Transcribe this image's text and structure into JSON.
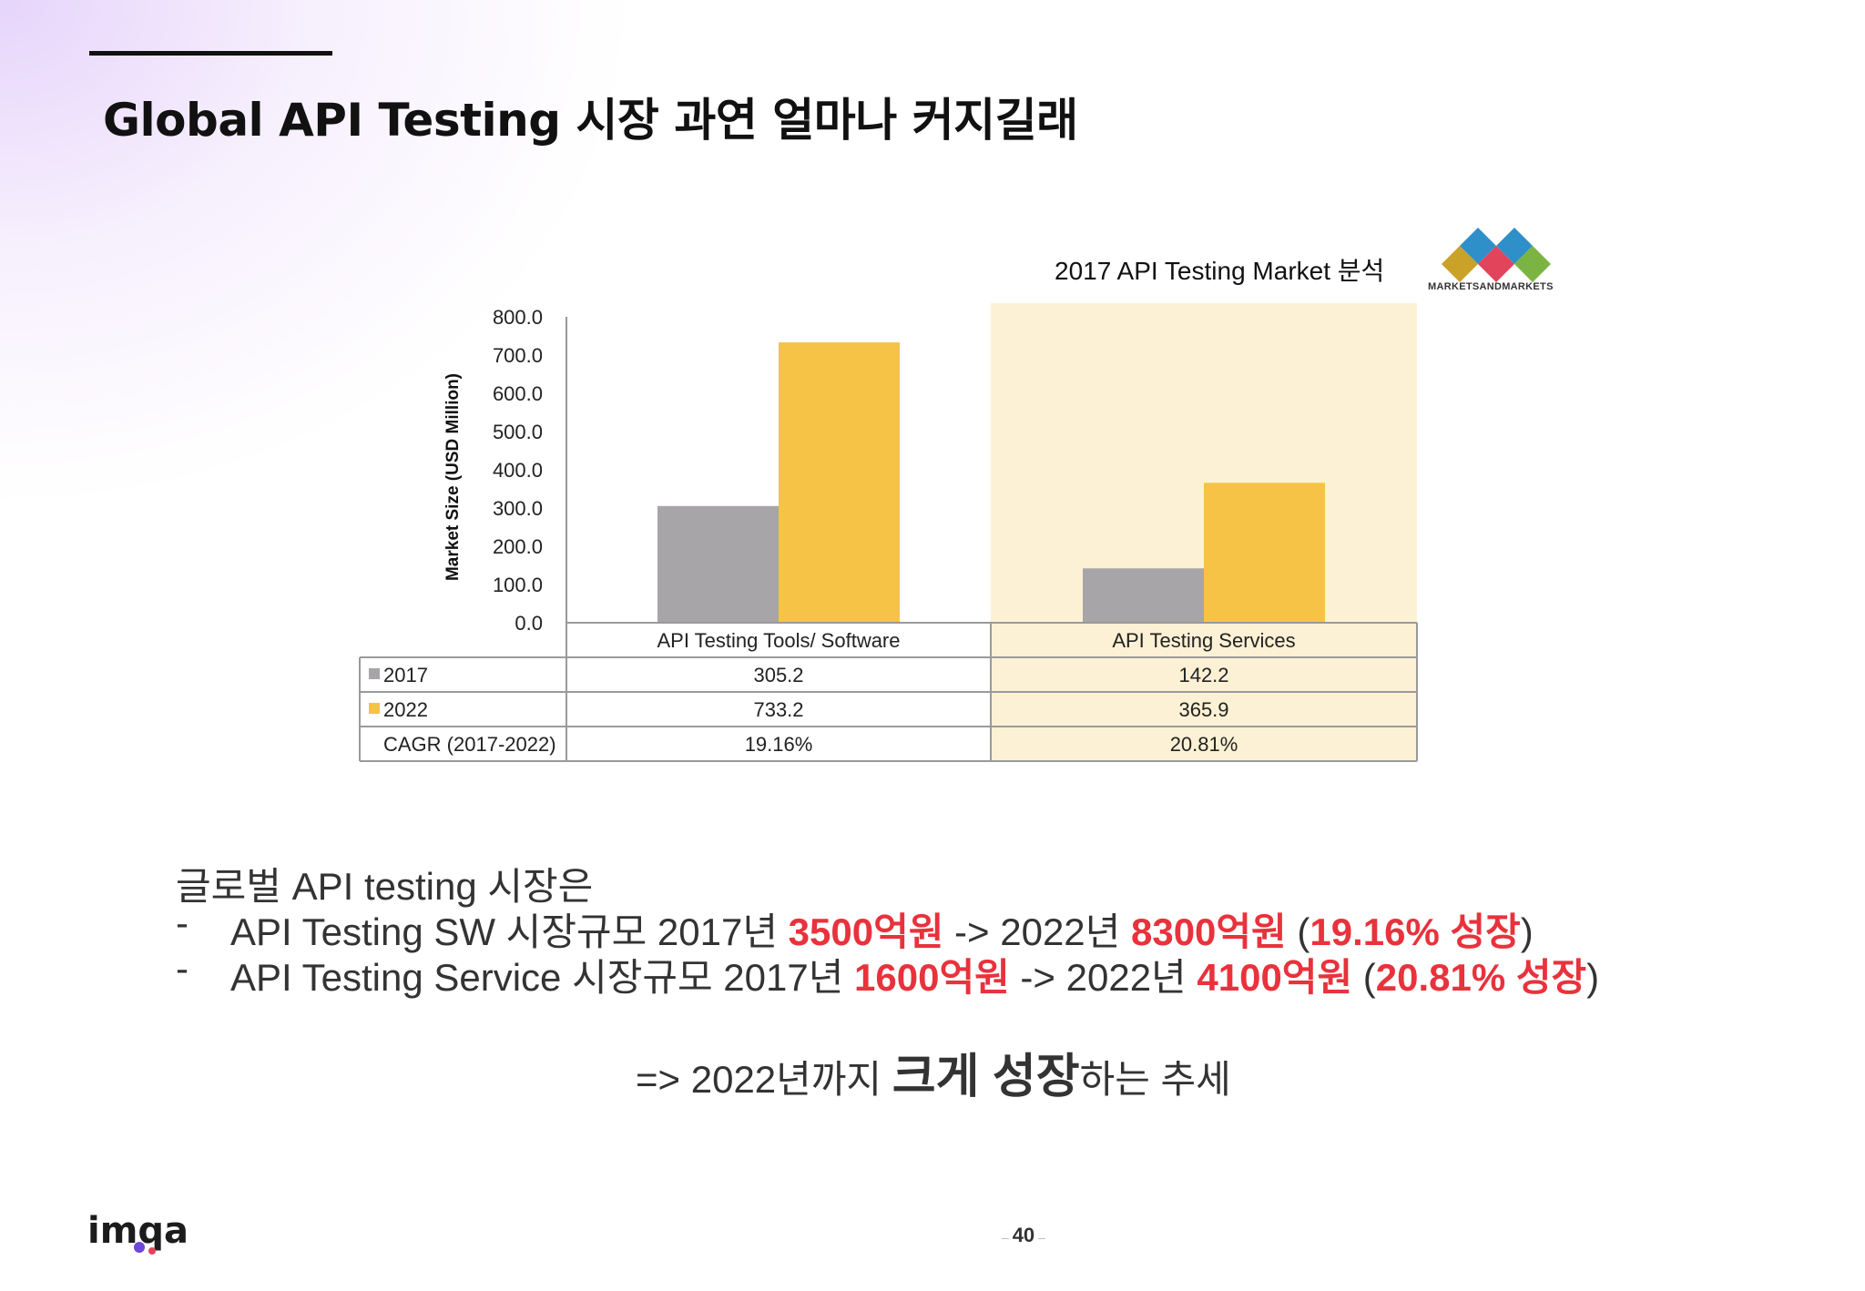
{
  "slide": {
    "title": "Global API Testing 시장 과연 얼마나 커지길래",
    "page_number": "40",
    "logo_text": "imqa"
  },
  "source": {
    "caption": "2017 API Testing Market 분석",
    "brand": "MARKETSANDMARKETS",
    "brand_colors": [
      "#c9a227",
      "#2f8fc9",
      "#e2445c",
      "#7bb442"
    ]
  },
  "chart_data": {
    "type": "bar",
    "ylabel": "Market Size (USD Million)",
    "ylim": [
      0,
      800
    ],
    "yticks": [
      "800.0",
      "700.0",
      "600.0",
      "500.0",
      "400.0",
      "300.0",
      "200.0",
      "100.0",
      "0.0"
    ],
    "categories": [
      "API Testing Tools/ Software",
      "API Testing Services"
    ],
    "series": [
      {
        "name": "2017",
        "color": "#a7a5a8",
        "values": [
          305.2,
          142.2
        ],
        "labels": [
          "305.2",
          "142.2"
        ]
      },
      {
        "name": "2022",
        "color": "#f6c347",
        "values": [
          733.2,
          365.9
        ],
        "labels": [
          "733.2",
          "365.9"
        ]
      }
    ],
    "cagr": {
      "label": "CAGR (2017-2022)",
      "values": [
        "19.16%",
        "20.81%"
      ]
    },
    "highlight_category": "API Testing Services",
    "highlight_color": "#fcf1d4",
    "grid": false
  },
  "summary": {
    "intro": "글로벌 API testing 시장은",
    "bullets": [
      {
        "dash": "-",
        "parts": [
          {
            "text": "API Testing SW 시장규모  2017년 ",
            "hl": false
          },
          {
            "text": "3500억원",
            "hl": true
          },
          {
            "text": " -> 2022년  ",
            "hl": false
          },
          {
            "text": "8300억원",
            "hl": true
          },
          {
            "text": " (",
            "hl": false
          },
          {
            "text": "19.16% 성장",
            "hl": true
          },
          {
            "text": ")",
            "hl": false
          }
        ]
      },
      {
        "dash": "-",
        "parts": [
          {
            "text": "API Testing Service 시장규모 2017년 ",
            "hl": false
          },
          {
            "text": "1600억원",
            "hl": true
          },
          {
            "text": " -> 2022년 ",
            "hl": false
          },
          {
            "text": "4100억원",
            "hl": true
          },
          {
            "text": " (",
            "hl": false
          },
          {
            "text": "20.81% 성장",
            "hl": true
          },
          {
            "text": ")",
            "hl": false
          }
        ]
      }
    ],
    "conclusion": {
      "prefix": "=> 2022년까지 ",
      "emphasis": "크게 성장",
      "suffix": "하는 추세"
    },
    "highlight_color": "#e8323c"
  }
}
